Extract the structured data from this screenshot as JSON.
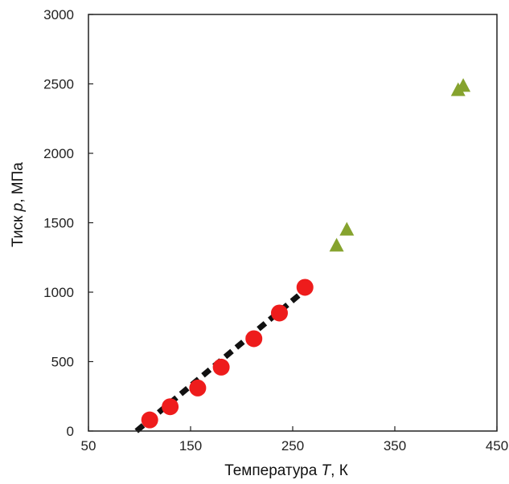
{
  "chart_data": {
    "type": "scatter",
    "title": "",
    "xlabel_parts": [
      "Температура ",
      "T",
      ",  К"
    ],
    "ylabel_parts": [
      "Тиск ",
      "p",
      ", МПа"
    ],
    "xlim": [
      50,
      450
    ],
    "ylim": [
      0,
      3000
    ],
    "x_ticks": [
      {
        "value": 50,
        "label": "50"
      },
      {
        "value": 150,
        "label": "150"
      },
      {
        "value": 250,
        "label": "250"
      },
      {
        "value": 350,
        "label": "350"
      },
      {
        "value": 450,
        "label": "450"
      }
    ],
    "y_ticks": [
      {
        "value": 0,
        "label": "0"
      },
      {
        "value": 500,
        "label": "500"
      },
      {
        "value": 1000,
        "label": "1000"
      },
      {
        "value": 1500,
        "label": "1500"
      },
      {
        "value": 2000,
        "label": "2000"
      },
      {
        "value": 2500,
        "label": "2500"
      },
      {
        "value": 3000,
        "label": "3000"
      }
    ],
    "grid": false,
    "legend": "none",
    "series": [
      {
        "marker": "circle",
        "color": "#ee1c1c",
        "points": [
          {
            "x": 110,
            "y": 80
          },
          {
            "x": 130,
            "y": 175
          },
          {
            "x": 157,
            "y": 310
          },
          {
            "x": 180,
            "y": 460
          },
          {
            "x": 212,
            "y": 665
          },
          {
            "x": 237,
            "y": 850
          },
          {
            "x": 262,
            "y": 1035
          }
        ]
      },
      {
        "marker": "triangle",
        "color": "#86a32e",
        "points": [
          {
            "x": 293,
            "y": 1330
          },
          {
            "x": 303,
            "y": 1445
          },
          {
            "x": 412,
            "y": 2450
          },
          {
            "x": 417,
            "y": 2480
          }
        ]
      },
      {
        "marker": "dashed-line",
        "color": "#111111",
        "points": [
          {
            "x": 97,
            "y": 0
          },
          {
            "x": 258,
            "y": 990
          }
        ]
      }
    ]
  }
}
